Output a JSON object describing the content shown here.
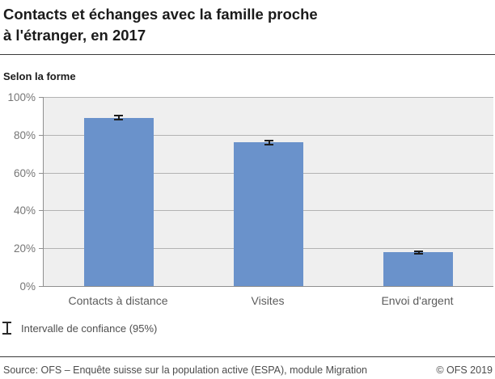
{
  "header": {
    "title_line1": "Contacts et échanges avec la famille proche",
    "title_line2": "à l'étranger, en 2017",
    "subtitle": "Selon la forme"
  },
  "chart_data": {
    "type": "bar",
    "title": "Contacts et échanges avec la famille proche à l'étranger, en 2017",
    "subtitle": "Selon la forme",
    "categories": [
      "Contacts à distance",
      "Visites",
      "Envoi d'argent"
    ],
    "values": [
      89,
      76,
      18
    ],
    "error_95ci_pct": [
      1.5,
      1.5,
      1.0
    ],
    "unit": "%",
    "ylim": [
      0,
      100
    ],
    "yticks": [
      0,
      20,
      40,
      60,
      80,
      100
    ],
    "ytick_labels": [
      "0%",
      "20%",
      "40%",
      "60%",
      "80%",
      "100%"
    ],
    "grid": true,
    "legend_position": "below",
    "bar_color": "#6a92cb",
    "plot_background": "#efefef",
    "gridline_color": "#b3b3b3",
    "error_bar_color": "#1c1c1c"
  },
  "legend": {
    "label": "Intervalle de confiance (95%)",
    "icon": "error-bar-icon"
  },
  "footer": {
    "source": "Source: OFS – Enquête suisse sur la population active (ESPA), module Migration",
    "copyright": "© OFS 2019"
  }
}
